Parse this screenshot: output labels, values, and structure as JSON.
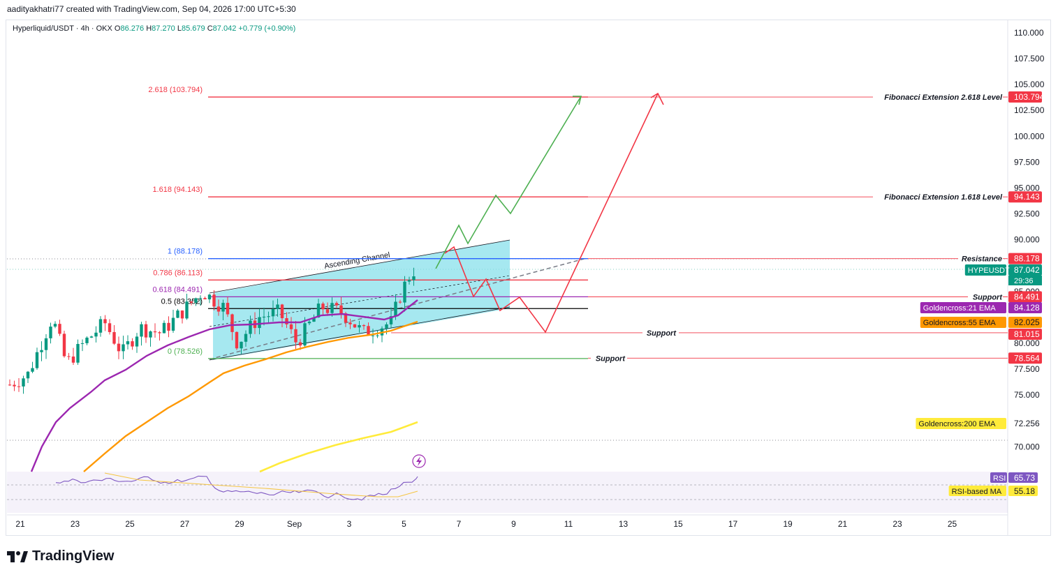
{
  "header": {
    "credit": "aadityakhatri77 created with TradingView.com, Sep 04, 2026 17:00 UTC+5:30"
  },
  "legend": {
    "symbol": "Hyperliquid/USDT · 4h · OKX",
    "o_label": "O",
    "o": "86.276",
    "h_label": "H",
    "h": "87.270",
    "l_label": "L",
    "l": "85.679",
    "c_label": "C",
    "c": "87.042",
    "change": "+0.779 (+0.90%)"
  },
  "footer": {
    "brand": "TradingView"
  },
  "colors": {
    "up": "#089981",
    "down": "#f23645",
    "ema21": "#9c27b0",
    "ema55": "#ff9800",
    "ema200": "#ffeb3b",
    "channel": "#80deea",
    "rsi": "#7e57c2"
  },
  "chart_data": {
    "type": "candlestick",
    "price_axis": {
      "min": 68.5,
      "max": 111,
      "ticks": [
        "110.000",
        "107.500",
        "105.000",
        "102.500",
        "100.000",
        "97.500",
        "95.000",
        "92.500",
        "90.000",
        "85.000",
        "80.000",
        "77.500",
        "75.000",
        "70.000"
      ]
    },
    "time_axis": {
      "ticks": [
        "21",
        "23",
        "25",
        "27",
        "29",
        "Sep",
        "3",
        "5",
        "7",
        "9",
        "11",
        "13",
        "15",
        "17",
        "19",
        "21",
        "23",
        "25"
      ]
    },
    "fib_levels": [
      {
        "label": "2.618 (103.794)",
        "price": 103.794,
        "color": "#f23645"
      },
      {
        "label": "1.618 (94.143)",
        "price": 94.143,
        "color": "#f23645"
      },
      {
        "label": "1 (88.178)",
        "price": 88.178,
        "color": "#2962ff"
      },
      {
        "label": "0.786 (86.113)",
        "price": 86.113,
        "color": "#f23645"
      },
      {
        "label": "0.618 (84.491)",
        "price": 84.491,
        "color": "#9c27b0"
      },
      {
        "label": "0.5 (83.352)",
        "price": 83.352,
        "color": "#000000"
      },
      {
        "label": "0 (78.526)",
        "price": 78.526,
        "color": "#4caf50"
      }
    ],
    "annotations": {
      "fib_ext_2618": "Fibonacci Extension 2.618 Level",
      "fib_ext_1618": "Fibonacci Extension 1.618 Level",
      "resistance": "Resistance",
      "support1": "Support",
      "support2": "Support",
      "support3": "Support",
      "channel": "Ascending Channel"
    },
    "price_tags": [
      {
        "text": "103.794",
        "price": 103.794,
        "bg": "#f23645",
        "fg": "#ffffff"
      },
      {
        "text": "94.143",
        "price": 94.143,
        "bg": "#f23645",
        "fg": "#ffffff"
      },
      {
        "text": "88.178",
        "price": 88.178,
        "bg": "#f23645",
        "fg": "#ffffff"
      },
      {
        "text": "87.042",
        "price": 87.042,
        "bg": "#089981",
        "fg": "#ffffff",
        "name": "HYPEUSDT",
        "countdown": "29:36"
      },
      {
        "text": "84.491",
        "price": 84.491,
        "bg": "#f23645",
        "fg": "#ffffff"
      },
      {
        "text": "84.128",
        "price": 84.128,
        "bg": "#9c27b0",
        "fg": "#ffffff",
        "name": "Goldencross:21 EMA"
      },
      {
        "text": "82.025",
        "price": 82.025,
        "bg": "#ff9800",
        "fg": "#131722",
        "name": "Goldencross:55 EMA"
      },
      {
        "text": "81.015",
        "price": 81.015,
        "bg": "#f23645",
        "fg": "#ffffff"
      },
      {
        "text": "78.564",
        "price": 78.564,
        "bg": "#f23645",
        "fg": "#ffffff"
      },
      {
        "text": "72.256",
        "price": 72.256,
        "bg": "#ffeb3b",
        "fg": "#131722",
        "name": "Goldencross:200 EMA"
      }
    ],
    "rsi": {
      "value": "65.73",
      "label": "RSI",
      "ma_value": "55.18",
      "ma_label": "RSI-based MA"
    }
  }
}
